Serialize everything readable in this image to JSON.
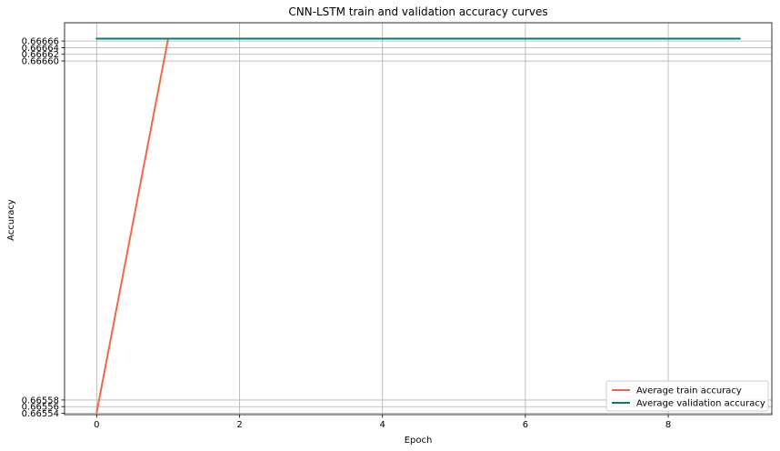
{
  "chart_data": {
    "type": "line",
    "title": "CNN-LSTM train and validation accuracy curves",
    "xlabel": "Epoch",
    "ylabel": "Accuracy",
    "xlim": [
      -0.45,
      9.45
    ],
    "ylim": [
      0.665536,
      0.666715
    ],
    "grid": true,
    "legend_position": "bottom-right",
    "x": [
      0,
      1,
      2,
      3,
      4,
      5,
      6,
      7,
      8,
      9
    ],
    "x_ticks": [
      0,
      2,
      4,
      6,
      8
    ],
    "x_tick_labels": [
      "0",
      "2",
      "4",
      "6",
      "8"
    ],
    "y_ticks": [
      0.66554,
      0.66556,
      0.66558,
      0.6666,
      0.66662,
      0.66664,
      0.66666
    ],
    "y_tick_labels": [
      "0.66554",
      "0.66556",
      "0.66558",
      "0.66660",
      "0.66662",
      "0.66664",
      "0.66666"
    ],
    "series": [
      {
        "name": "Average train accuracy",
        "color": "#f0674a",
        "values": [
          0.665543,
          0.666667,
          0.666667,
          0.666667,
          0.666667,
          0.666667,
          0.666667,
          0.666667,
          0.666667,
          0.666667
        ]
      },
      {
        "name": "Average validation accuracy",
        "color": "#0a7a76",
        "values": [
          0.666667,
          0.666667,
          0.666667,
          0.666667,
          0.666667,
          0.666667,
          0.666667,
          0.666667,
          0.666667,
          0.666667
        ]
      }
    ]
  }
}
